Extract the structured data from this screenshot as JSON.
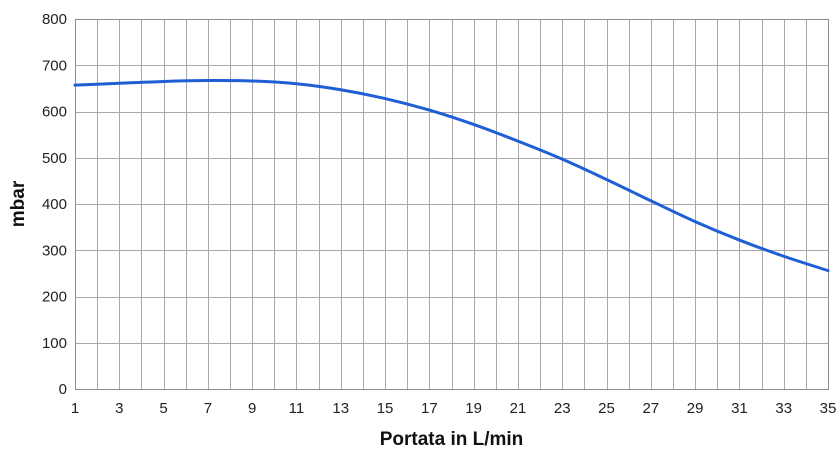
{
  "chart_data": {
    "type": "line",
    "title": "",
    "xlabel": "Portata in L/min",
    "ylabel": "mbar",
    "xlim": [
      1,
      35
    ],
    "ylim": [
      0,
      800
    ],
    "x_ticks": [
      1,
      3,
      5,
      7,
      9,
      11,
      13,
      15,
      17,
      19,
      21,
      23,
      25,
      27,
      29,
      31,
      33,
      35
    ],
    "y_ticks": [
      0,
      100,
      200,
      300,
      400,
      500,
      600,
      700,
      800
    ],
    "x_grid": [
      1,
      2,
      3,
      4,
      5,
      6,
      7,
      8,
      9,
      10,
      11,
      12,
      13,
      14,
      15,
      16,
      17,
      18,
      19,
      20,
      21,
      22,
      23,
      24,
      25,
      26,
      27,
      28,
      29,
      30,
      31,
      32,
      33,
      34,
      35
    ],
    "grid": true,
    "series": [
      {
        "color": "#1f5fd6",
        "x": [
          1,
          3,
          5,
          7,
          9,
          11,
          13,
          15,
          17,
          19,
          21,
          23,
          25,
          27,
          29,
          31,
          33,
          35
        ],
        "y": [
          657,
          661,
          665,
          667,
          666,
          660,
          647,
          628,
          603,
          572,
          536,
          497,
          453,
          407,
          362,
          322,
          287,
          256
        ]
      }
    ]
  }
}
